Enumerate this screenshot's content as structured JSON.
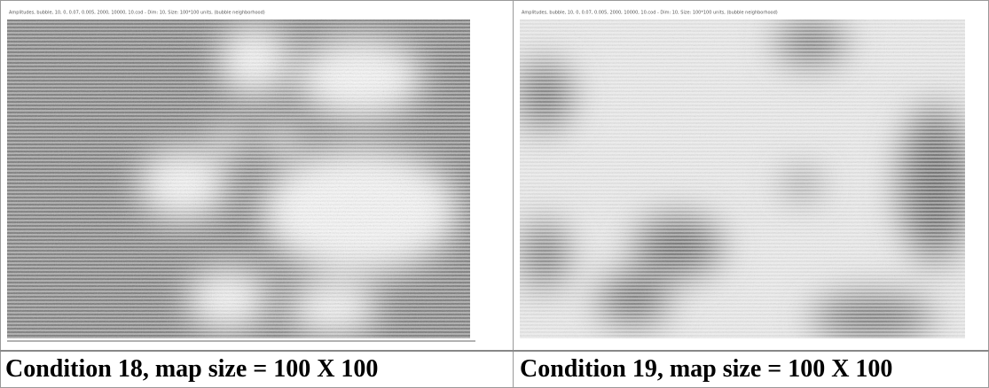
{
  "table": {
    "rows": [
      [
        {
          "image_header": "Amplitudes, bubble, 10, 0, 0.07, 0.005, 2000, 10000, 10.cod - Dim: 10, Size: 100*100 units, (bubble neighborhood)"
        },
        {
          "image_header": "Amplitudes, bubble, 10, 0, 0.07, 0.005, 2000, 10000, 10.cod - Dim: 10, Size: 100*100 units, (bubble neighborhood)"
        }
      ],
      [
        "Condition 18, map size = 100 X 100",
        "Condition 19, map size = 100 X 100"
      ]
    ]
  }
}
